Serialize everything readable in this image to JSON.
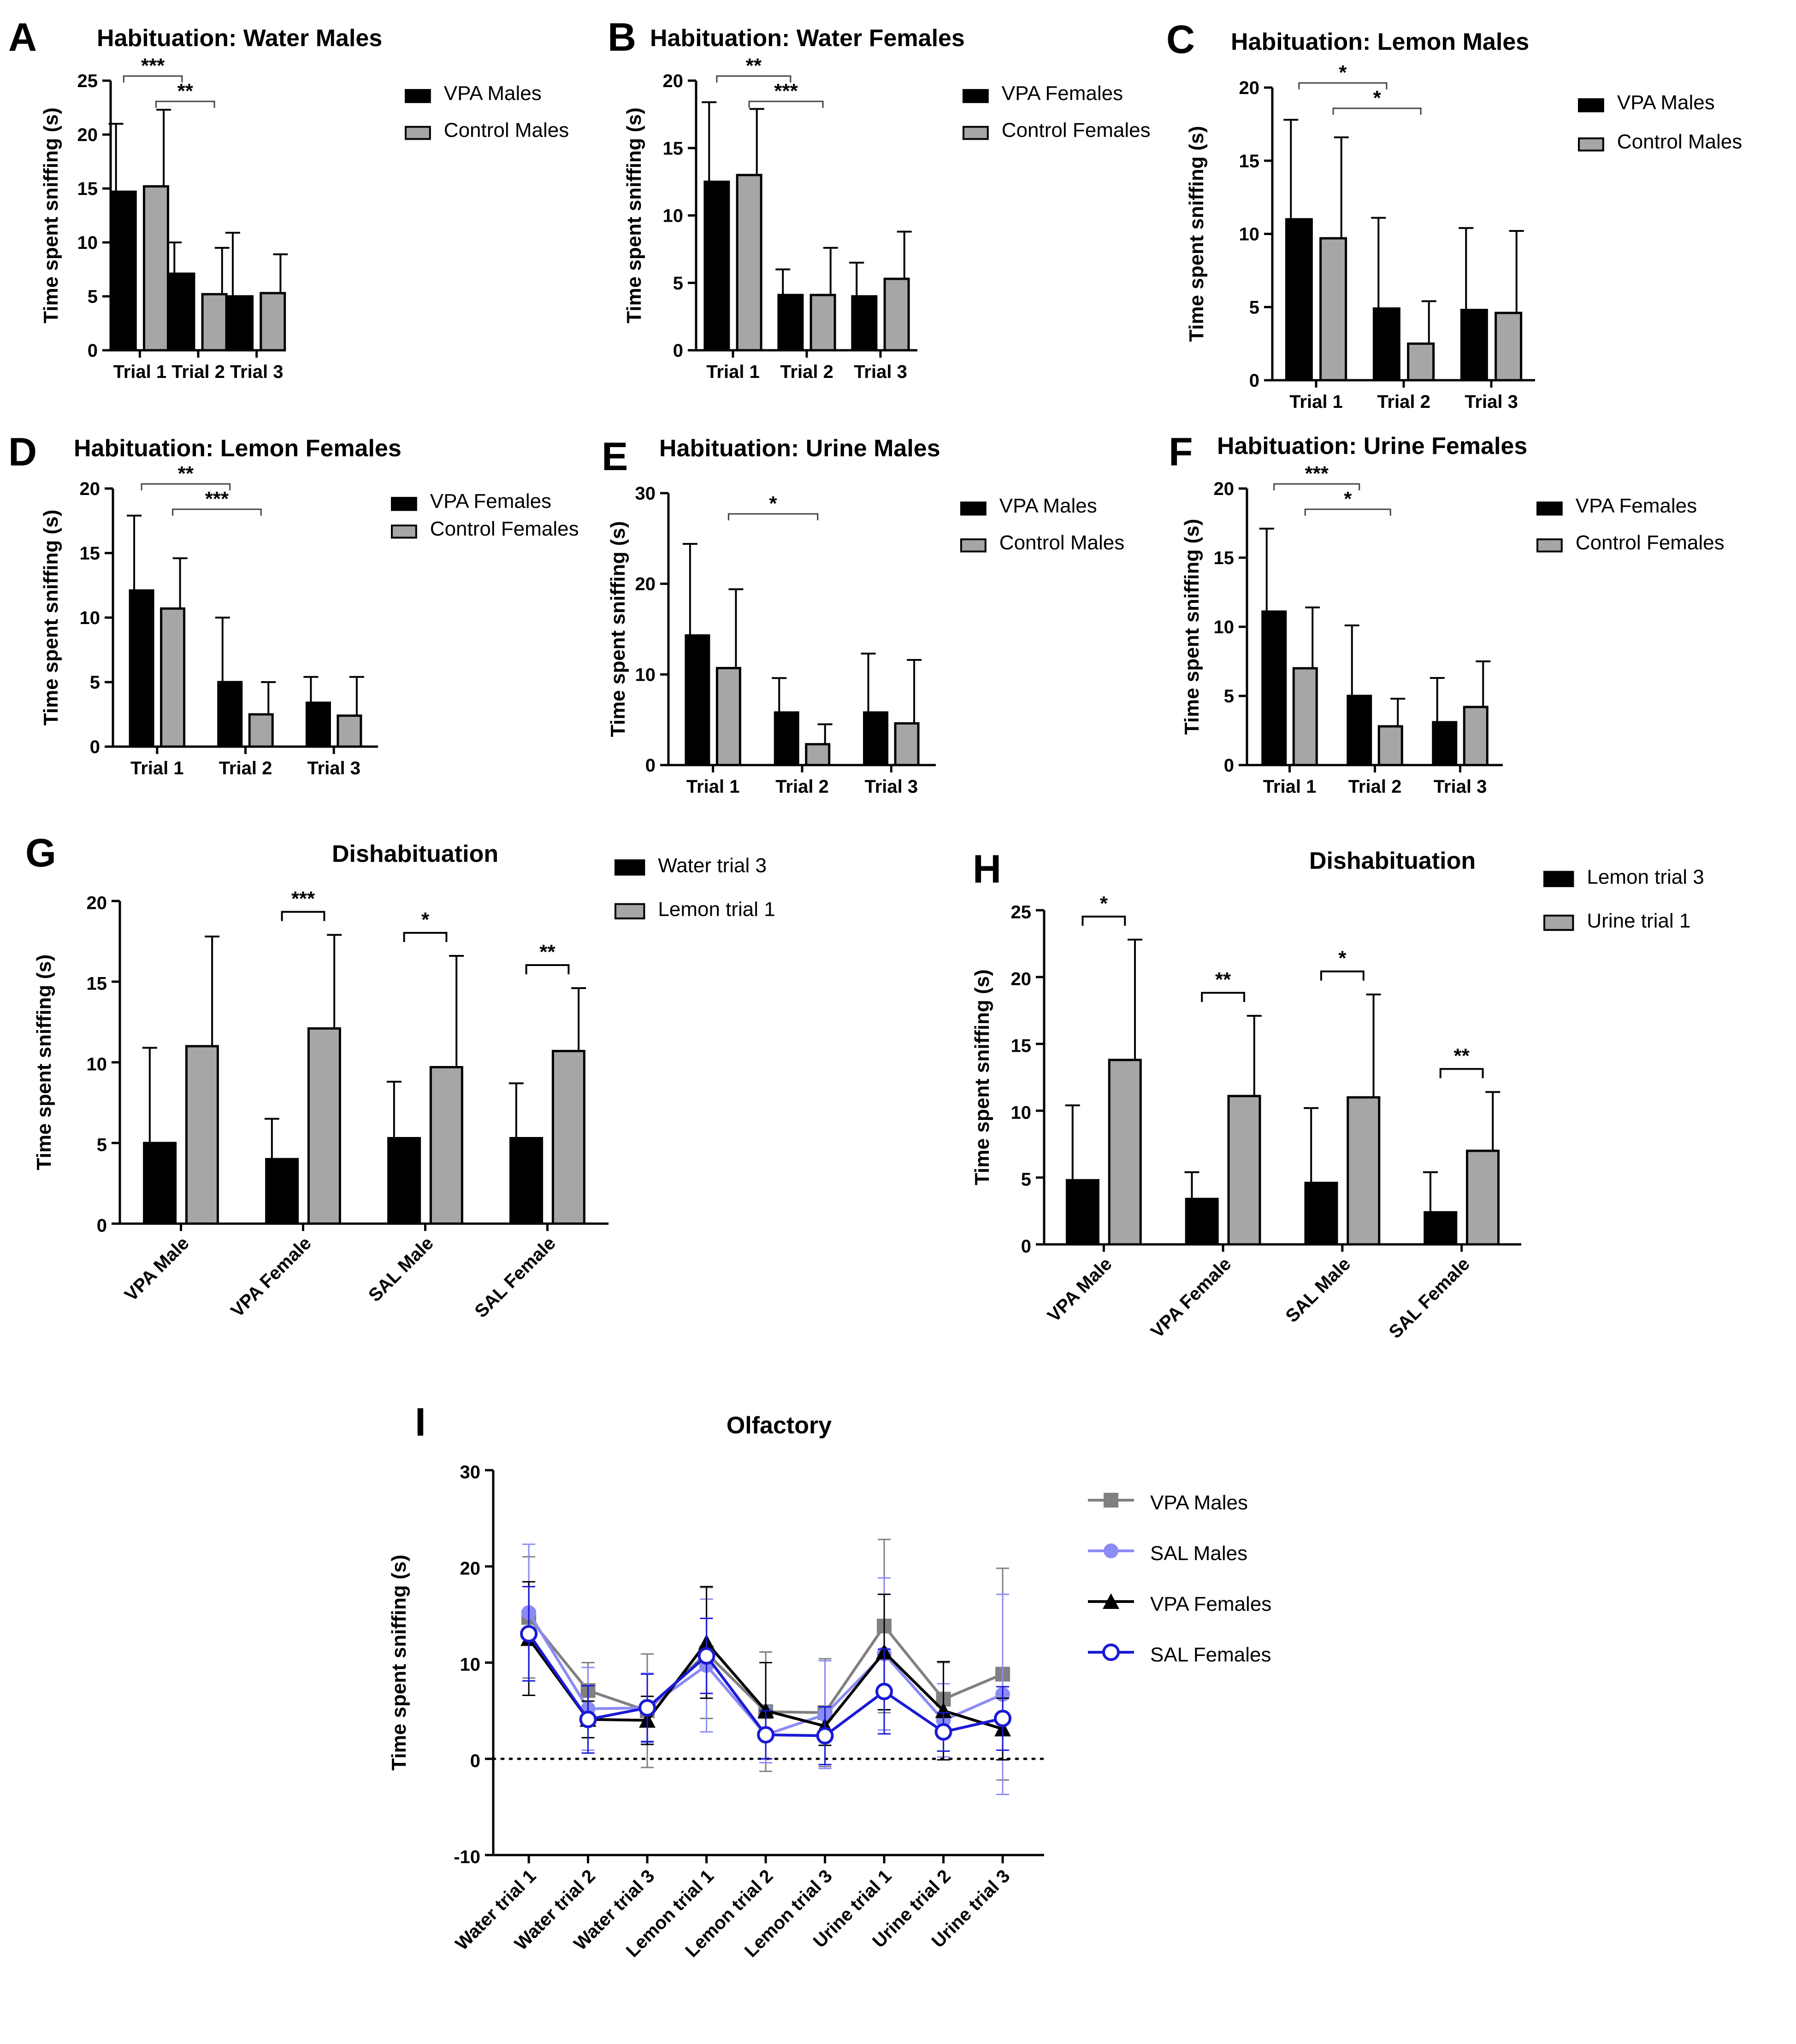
{
  "chart_data": [
    {
      "id": "A",
      "type": "bar",
      "panel_label": "A",
      "title": "Habituation: Water  Males",
      "ylabel": "Time spent sniffing (s)",
      "ylim": [
        0,
        25
      ],
      "yticks": [
        0,
        5,
        10,
        15,
        20,
        25
      ],
      "categories": [
        "Trial 1",
        "Trial 2",
        "Trial 3"
      ],
      "series": [
        {
          "name": "VPA Males",
          "color": "#000000",
          "values": [
            14.7,
            7.1,
            5.0
          ],
          "errors": [
            6.3,
            2.9,
            5.9
          ]
        },
        {
          "name": "Control Males",
          "color": "#a6a6a6",
          "values": [
            15.2,
            5.2,
            5.3
          ],
          "errors": [
            7.1,
            4.3,
            3.6
          ]
        }
      ],
      "sig": [
        {
          "from": [
            0,
            0
          ],
          "to": [
            1,
            0
          ],
          "label": "***",
          "level": 1
        },
        {
          "from": [
            0,
            1
          ],
          "to": [
            1,
            1
          ],
          "label": "**",
          "level": 0
        }
      ]
    },
    {
      "id": "B",
      "type": "bar",
      "panel_label": "B",
      "title": "Habituation: Water  Females",
      "ylabel": "Time spent sniffing (s)",
      "ylim": [
        0,
        20
      ],
      "yticks": [
        0,
        5,
        10,
        15,
        20
      ],
      "categories": [
        "Trial 1",
        "Trial 2",
        "Trial 3"
      ],
      "series": [
        {
          "name": "VPA Females",
          "color": "#000000",
          "values": [
            12.5,
            4.1,
            4.0
          ],
          "errors": [
            5.9,
            1.9,
            2.5
          ]
        },
        {
          "name": "Control Females",
          "color": "#a6a6a6",
          "values": [
            13.0,
            4.1,
            5.3
          ],
          "errors": [
            4.9,
            3.5,
            3.5
          ]
        }
      ],
      "sig": [
        {
          "from": [
            0,
            0
          ],
          "to": [
            1,
            0
          ],
          "label": "**",
          "level": 1
        },
        {
          "from": [
            0,
            1
          ],
          "to": [
            1,
            1
          ],
          "label": "***",
          "level": 0
        }
      ]
    },
    {
      "id": "C",
      "type": "bar",
      "panel_label": "C",
      "title": "Habituation: Lemon  Males",
      "ylabel": "Time spent sniffing (s)",
      "ylim": [
        0,
        20
      ],
      "yticks": [
        0,
        5,
        10,
        15,
        20
      ],
      "categories": [
        "Trial 1",
        "Trial 2",
        "Trial 3"
      ],
      "series": [
        {
          "name": "VPA Males",
          "color": "#000000",
          "values": [
            11.0,
            4.9,
            4.8
          ],
          "errors": [
            6.8,
            6.2,
            5.6
          ]
        },
        {
          "name": "Control Males",
          "color": "#a6a6a6",
          "values": [
            9.7,
            2.5,
            4.6
          ],
          "errors": [
            6.9,
            2.9,
            5.6
          ]
        }
      ],
      "sig": [
        {
          "from": [
            0,
            0
          ],
          "to": [
            1,
            0
          ],
          "label": "*",
          "level": 1
        },
        {
          "from": [
            0,
            1
          ],
          "to": [
            1,
            1
          ],
          "label": "*",
          "level": 0
        }
      ]
    },
    {
      "id": "D",
      "type": "bar",
      "panel_label": "D",
      "title": "Habituation: Lemon  Females",
      "ylabel": "Time spent sniffing (s)",
      "ylim": [
        0,
        20
      ],
      "yticks": [
        0,
        5,
        10,
        15,
        20
      ],
      "categories": [
        "Trial 1",
        "Trial 2",
        "Trial 3"
      ],
      "series": [
        {
          "name": "VPA Females",
          "color": "#000000",
          "values": [
            12.1,
            5.0,
            3.4
          ],
          "errors": [
            5.8,
            5.0,
            2.0
          ]
        },
        {
          "name": "Control Females",
          "color": "#a6a6a6",
          "values": [
            10.7,
            2.5,
            2.4
          ],
          "errors": [
            3.9,
            2.5,
            3.0
          ]
        }
      ],
      "sig": [
        {
          "from": [
            0,
            0
          ],
          "to": [
            1,
            0
          ],
          "label": "**",
          "level": 1
        },
        {
          "from": [
            0,
            1
          ],
          "to": [
            1,
            1
          ],
          "label": "***",
          "level": 0
        }
      ]
    },
    {
      "id": "E",
      "type": "bar",
      "panel_label": "E",
      "title": "Habituation: Urine Males",
      "ylabel": "Time spent sniffing (s)",
      "ylim": [
        0,
        30
      ],
      "yticks": [
        0,
        10,
        20,
        30
      ],
      "categories": [
        "Trial 1",
        "Trial 2",
        "Trial 3"
      ],
      "series": [
        {
          "name": "VPA Males",
          "color": "#000000",
          "values": [
            14.3,
            5.8,
            5.8
          ],
          "errors": [
            10.1,
            3.8,
            6.5
          ]
        },
        {
          "name": "Control Males",
          "color": "#a6a6a6",
          "values": [
            10.7,
            2.3,
            4.6
          ],
          "errors": [
            8.7,
            2.2,
            7.0
          ]
        }
      ],
      "sig": [
        {
          "from": [
            0,
            1
          ],
          "to": [
            1,
            1
          ],
          "label": "*",
          "level": 0
        }
      ]
    },
    {
      "id": "F",
      "type": "bar",
      "panel_label": "F",
      "title": "Habituation: Urine Females",
      "ylabel": "Time spent sniffing (s)",
      "ylim": [
        0,
        20
      ],
      "yticks": [
        0,
        5,
        10,
        15,
        20
      ],
      "categories": [
        "Trial 1",
        "Trial 2",
        "Trial 3"
      ],
      "series": [
        {
          "name": "VPA Females",
          "color": "#000000",
          "values": [
            11.1,
            5.0,
            3.1
          ],
          "errors": [
            6.0,
            5.1,
            3.2
          ]
        },
        {
          "name": "Control Females",
          "color": "#a6a6a6",
          "values": [
            7.0,
            2.8,
            4.2
          ],
          "errors": [
            4.4,
            2.0,
            3.3
          ]
        }
      ],
      "sig": [
        {
          "from": [
            0,
            0
          ],
          "to": [
            1,
            0
          ],
          "label": "***",
          "level": 1
        },
        {
          "from": [
            0,
            1
          ],
          "to": [
            1,
            1
          ],
          "label": "*",
          "level": 0
        }
      ]
    },
    {
      "id": "G",
      "type": "bar",
      "panel_label": "G",
      "title": "Dishabituation",
      "ylabel": "Time spent sniffing (s)",
      "ylim": [
        0,
        20
      ],
      "yticks": [
        0,
        5,
        10,
        15,
        20
      ],
      "categories": [
        "VPA Male",
        "VPA Female",
        "SAL Male",
        "SAL Female"
      ],
      "rotate_ticks": true,
      "series": [
        {
          "name": "Water trial 3",
          "color": "#000000",
          "values": [
            5.0,
            4.0,
            5.3,
            5.3
          ],
          "errors": [
            5.9,
            2.5,
            3.5,
            3.4
          ]
        },
        {
          "name": "Lemon trial 1",
          "color": "#a6a6a6",
          "values": [
            11.0,
            12.1,
            9.7,
            10.7
          ],
          "errors": [
            6.8,
            5.8,
            6.9,
            3.9
          ]
        }
      ],
      "sig": [
        {
          "cat": 1,
          "label": "***"
        },
        {
          "cat": 2,
          "label": "*"
        },
        {
          "cat": 3,
          "label": "**"
        }
      ]
    },
    {
      "id": "H",
      "type": "bar",
      "panel_label": "H",
      "title": "Dishabituation",
      "ylabel": "Time spent sniffing (s)",
      "ylim": [
        0,
        25
      ],
      "yticks": [
        0,
        5,
        10,
        15,
        20,
        25
      ],
      "categories": [
        "VPA Male",
        "VPA Female",
        "SAL Male",
        "SAL Female"
      ],
      "rotate_ticks": true,
      "series": [
        {
          "name": "Lemon trial 3",
          "color": "#000000",
          "values": [
            4.8,
            3.4,
            4.6,
            2.4
          ],
          "errors": [
            5.6,
            2.0,
            5.6,
            3.0
          ]
        },
        {
          "name": "Urine trial 1",
          "color": "#a6a6a6",
          "values": [
            13.8,
            11.1,
            11.0,
            7.0
          ],
          "errors": [
            9.0,
            6.0,
            7.7,
            4.4
          ]
        }
      ],
      "sig": [
        {
          "cat": 0,
          "label": "*"
        },
        {
          "cat": 1,
          "label": "**"
        },
        {
          "cat": 2,
          "label": "*"
        },
        {
          "cat": 3,
          "label": "**"
        }
      ]
    },
    {
      "id": "I",
      "type": "line",
      "panel_label": "I",
      "title": "Olfactory",
      "ylabel": "Time spent sniffing (s)",
      "ylim": [
        -10,
        30
      ],
      "yticks": [
        -10,
        0,
        10,
        20,
        30
      ],
      "categories": [
        "Water trial 1",
        "Water trial 2",
        "Water trial 3",
        "Lemon trial 1",
        "Lemon trial 2",
        "Lemon trial 3",
        "Urine trial 1",
        "Urine trial 2",
        "Urine trial 3"
      ],
      "series": [
        {
          "name": "VPA Males",
          "color": "#808080",
          "marker": "square",
          "values": [
            14.7,
            7.1,
            5.0,
            11.0,
            4.9,
            4.8,
            13.8,
            6.2,
            8.8
          ],
          "errors": [
            6.3,
            2.9,
            5.9,
            6.8,
            6.2,
            5.6,
            9.0,
            3.8,
            11.0
          ]
        },
        {
          "name": "SAL Males",
          "color": "#8b8bf5",
          "marker": "circle",
          "values": [
            15.2,
            5.2,
            5.3,
            9.7,
            2.5,
            4.6,
            10.9,
            4.0,
            6.7
          ],
          "errors": [
            7.1,
            4.3,
            3.6,
            6.9,
            2.9,
            5.6,
            7.9,
            3.8,
            10.4
          ]
        },
        {
          "name": "VPA Females",
          "color": "#000000",
          "marker": "triangle",
          "values": [
            12.5,
            4.1,
            4.0,
            12.1,
            5.0,
            3.4,
            11.1,
            5.0,
            3.1
          ],
          "errors": [
            5.9,
            1.9,
            2.5,
            5.8,
            5.0,
            2.0,
            6.0,
            5.1,
            3.2
          ]
        },
        {
          "name": "SAL Females",
          "color": "#1a1ad6",
          "marker": "open-circle",
          "values": [
            13.0,
            4.1,
            5.3,
            10.7,
            2.5,
            2.4,
            7.0,
            2.8,
            4.2
          ],
          "errors": [
            4.9,
            3.5,
            3.5,
            3.9,
            2.5,
            3.0,
            4.4,
            2.0,
            3.3
          ]
        }
      ]
    }
  ]
}
